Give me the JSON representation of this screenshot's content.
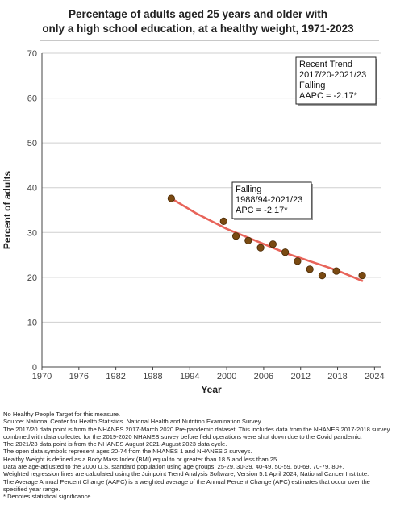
{
  "page": {
    "title_line1": "Percentage of adults aged 25 years and older with",
    "title_line2": "only a high school education, at a healthy weight, 1971-2023"
  },
  "chart_data": {
    "type": "scatter",
    "title": "Percentage of adults aged 25 years and older with only a high school education, at a healthy weight, 1971-2023",
    "xlabel": "Year",
    "ylabel": "Percent of adults",
    "xlim": [
      1970,
      2025
    ],
    "ylim": [
      0,
      70
    ],
    "x_ticks": [
      1970,
      1976,
      1982,
      1988,
      1994,
      2000,
      2006,
      2012,
      2018,
      2024
    ],
    "y_ticks": [
      0,
      10,
      20,
      30,
      40,
      50,
      60,
      70
    ],
    "grid": "horizontal",
    "series": [
      {
        "type": "points",
        "color": "#7a4a12",
        "points": [
          {
            "x": 1991,
            "y": 37.6
          },
          {
            "x": 1999.5,
            "y": 32.5
          },
          {
            "x": 2001.5,
            "y": 29.2
          },
          {
            "x": 2003.5,
            "y": 28.2
          },
          {
            "x": 2005.5,
            "y": 26.6
          },
          {
            "x": 2007.5,
            "y": 27.4
          },
          {
            "x": 2009.5,
            "y": 25.6
          },
          {
            "x": 2011.5,
            "y": 23.6
          },
          {
            "x": 2013.5,
            "y": 21.8
          },
          {
            "x": 2015.5,
            "y": 20.4
          },
          {
            "x": 2017.8,
            "y": 21.4
          },
          {
            "x": 2022,
            "y": 20.4
          }
        ]
      },
      {
        "type": "trend",
        "color": "#e8645a",
        "points": [
          {
            "x": 1991,
            "y": 37.6
          },
          {
            "x": 1995,
            "y": 34.3
          },
          {
            "x": 2000,
            "y": 30.8
          },
          {
            "x": 2005,
            "y": 28.0
          },
          {
            "x": 2010,
            "y": 25.2
          },
          {
            "x": 2015,
            "y": 22.9
          },
          {
            "x": 2018,
            "y": 21.5
          },
          {
            "x": 2022,
            "y": 19.2
          }
        ]
      }
    ],
    "annotations": [
      {
        "lines": [
          "Falling",
          "1988/94-2021/23",
          "APC = -2.17*"
        ]
      },
      {
        "lines": [
          "Recent Trend",
          "2017/20-2021/23",
          "Falling",
          "AAPC = -2.17*"
        ]
      }
    ]
  },
  "notes": [
    "No Healthy People Target for this measure.",
    "Source: National Center for Health Statistics. National Health and Nutrition Examination Survey.",
    "The 2017/20 data point is from the NHANES 2017-March 2020 Pre-pandemic dataset. This includes data from the NHANES 2017-2018 survey combined with data collected for the 2019-2020 NHANES survey before field operations were shut down due to the Covid pandemic.",
    "The 2021/23 data point is from the NHANES August 2021-August 2023 data cycle.",
    "The open data symbols represent ages 20-74 from the NHANES 1 and NHANES 2 surveys.",
    "Healthy Weight is defined as a Body Mass Index (BMI) equal to or greater than 18.5 and less than 25.",
    "Data are age-adjusted to the 2000 U.S. standard population using age groups: 25-29, 30-39, 40-49, 50-59, 60-69, 70-79, 80+.",
    "Weighted regression lines are calculated using the Joinpoint Trend Analysis Software, Version 5.1 April 2024, National Cancer Institute.",
    "The Average Annual Percent Change (AAPC) is a weighted average of the Annual Percent Change (APC) estimates that occur over the specified year range.",
    "* Denotes statistical significance."
  ]
}
